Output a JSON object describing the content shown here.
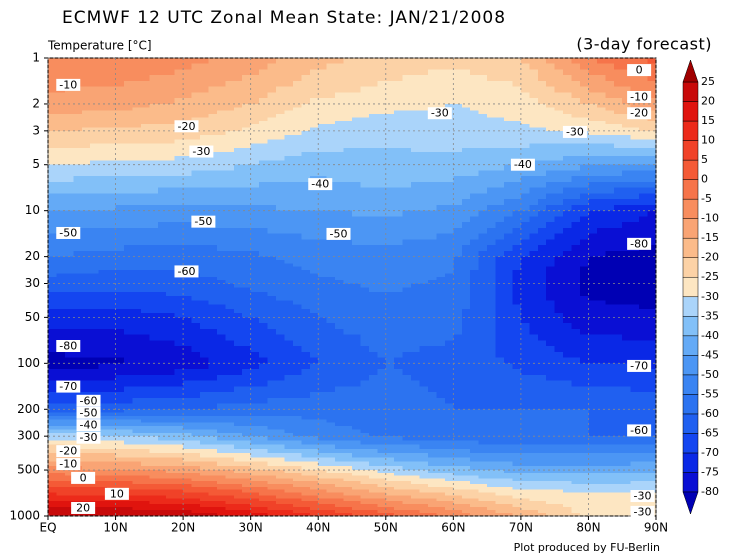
{
  "chart_data": {
    "type": "contour",
    "title": "ECMWF 12 UTC Zonal Mean State: JAN/21/2008",
    "subtitle": "(3-day forecast)",
    "y_label": "Temperature [°C]",
    "footer": "Plot produced by FU-Berlin",
    "xlim": [
      0,
      90
    ],
    "ylim": [
      1000,
      1
    ],
    "log_y": true,
    "grid": true,
    "xticks": [
      {
        "value": 0,
        "label": "EQ"
      },
      {
        "value": 10,
        "label": "10N"
      },
      {
        "value": 20,
        "label": "20N"
      },
      {
        "value": 30,
        "label": "30N"
      },
      {
        "value": 40,
        "label": "40N"
      },
      {
        "value": 50,
        "label": "50N"
      },
      {
        "value": 60,
        "label": "60N"
      },
      {
        "value": 70,
        "label": "70N"
      },
      {
        "value": 80,
        "label": "80N"
      },
      {
        "value": 90,
        "label": "90N"
      }
    ],
    "yticks": [
      1,
      2,
      3,
      5,
      10,
      20,
      30,
      50,
      100,
      200,
      300,
      500,
      1000
    ],
    "field": {
      "lat": [
        0,
        10,
        20,
        30,
        40,
        50,
        60,
        70,
        80,
        90
      ],
      "pressure": [
        1,
        2,
        3,
        5,
        10,
        20,
        30,
        50,
        100,
        200,
        300,
        500,
        700,
        1000
      ],
      "values": [
        [
          -5,
          -5,
          -8,
          -12,
          -18,
          -22,
          -24,
          -20,
          -5,
          2
        ],
        [
          -12,
          -13,
          -16,
          -20,
          -26,
          -28,
          -30,
          -28,
          -20,
          -11
        ],
        [
          -20,
          -21,
          -22,
          -26,
          -31,
          -34,
          -32,
          -31,
          -29,
          -25
        ],
        [
          -30,
          -31,
          -32,
          -35,
          -38,
          -36,
          -37,
          -40,
          -44,
          -46
        ],
        [
          -45,
          -46,
          -47,
          -46,
          -45,
          -44,
          -46,
          -55,
          -70,
          -75
        ],
        [
          -55,
          -57,
          -58,
          -56,
          -53,
          -52,
          -54,
          -70,
          -80,
          -82
        ],
        [
          -62,
          -63,
          -62,
          -59,
          -56,
          -54,
          -56,
          -72,
          -82,
          -83
        ],
        [
          -72,
          -73,
          -70,
          -65,
          -60,
          -57,
          -58,
          -70,
          -78,
          -79
        ],
        [
          -82,
          -81,
          -78,
          -72,
          -65,
          -60,
          -62,
          -66,
          -70,
          -71
        ],
        [
          -62,
          -62,
          -60,
          -58,
          -57,
          -58,
          -60,
          -60,
          -60,
          -61
        ],
        [
          -32,
          -34,
          -38,
          -45,
          -52,
          -56,
          -58,
          -60,
          -60,
          -61
        ],
        [
          -8,
          -9,
          -12,
          -18,
          -25,
          -32,
          -38,
          -42,
          -42,
          -41
        ],
        [
          9,
          8,
          6,
          0,
          -8,
          -16,
          -22,
          -28,
          -30,
          -30
        ],
        [
          26,
          26,
          24,
          18,
          10,
          2,
          -6,
          -16,
          -26,
          -30
        ]
      ]
    },
    "colorbar": {
      "levels": [
        -80,
        -75,
        -70,
        -65,
        -60,
        -55,
        -50,
        -45,
        -40,
        -35,
        -30,
        -25,
        -20,
        -15,
        -10,
        -5,
        0,
        5,
        10,
        15,
        20,
        25
      ],
      "colors": [
        "#0000b4",
        "#0a0fd4",
        "#0a28e6",
        "#1446f0",
        "#2060f0",
        "#2c73f0",
        "#3a84f2",
        "#4c96f4",
        "#64aaf6",
        "#82c0f8",
        "#aad4fa",
        "#fde6c2",
        "#fcd2a6",
        "#fbbb8a",
        "#f9a474",
        "#f88d5e",
        "#f6744a",
        "#f45a36",
        "#f04228",
        "#ec2a1a",
        "#e0140e",
        "#c80a0a",
        "#a00000"
      ]
    },
    "contour_labels": [
      {
        "value": -10,
        "lat": 3,
        "p": 1.5
      },
      {
        "value": 0,
        "lat": 87.5,
        "p": 1.2
      },
      {
        "value": -10,
        "lat": 87.5,
        "p": 1.8
      },
      {
        "value": -20,
        "lat": 87.5,
        "p": 2.3
      },
      {
        "value": -20,
        "lat": 20.5,
        "p": 2.8
      },
      {
        "value": -30,
        "lat": 58,
        "p": 2.3
      },
      {
        "value": -30,
        "lat": 78,
        "p": 3.05
      },
      {
        "value": -30,
        "lat": 22.7,
        "p": 4.1
      },
      {
        "value": -40,
        "lat": 40.3,
        "p": 6.7
      },
      {
        "value": -40,
        "lat": 70.3,
        "p": 5
      },
      {
        "value": -50,
        "lat": 3,
        "p": 14
      },
      {
        "value": -50,
        "lat": 23,
        "p": 11.8
      },
      {
        "value": -50,
        "lat": 43,
        "p": 14.2
      },
      {
        "value": -60,
        "lat": 20.5,
        "p": 25
      },
      {
        "value": -80,
        "lat": 87.5,
        "p": 16.5
      },
      {
        "value": -80,
        "lat": 3,
        "p": 77
      },
      {
        "value": -70,
        "lat": 87.5,
        "p": 104
      },
      {
        "value": -70,
        "lat": 3,
        "p": 142
      },
      {
        "value": -60,
        "lat": 6,
        "p": 176
      },
      {
        "value": -50,
        "lat": 6,
        "p": 211
      },
      {
        "value": -40,
        "lat": 6,
        "p": 254
      },
      {
        "value": -30,
        "lat": 6,
        "p": 307
      },
      {
        "value": -20,
        "lat": 3,
        "p": 376
      },
      {
        "value": -10,
        "lat": 3,
        "p": 457
      },
      {
        "value": 0,
        "lat": 5.2,
        "p": 563
      },
      {
        "value": -60,
        "lat": 87.5,
        "p": 275
      },
      {
        "value": 10,
        "lat": 10.2,
        "p": 716
      },
      {
        "value": 20,
        "lat": 5.2,
        "p": 886
      },
      {
        "value": -30,
        "lat": 88,
        "p": 740
      },
      {
        "value": -30,
        "lat": 88,
        "p": 940
      }
    ]
  }
}
